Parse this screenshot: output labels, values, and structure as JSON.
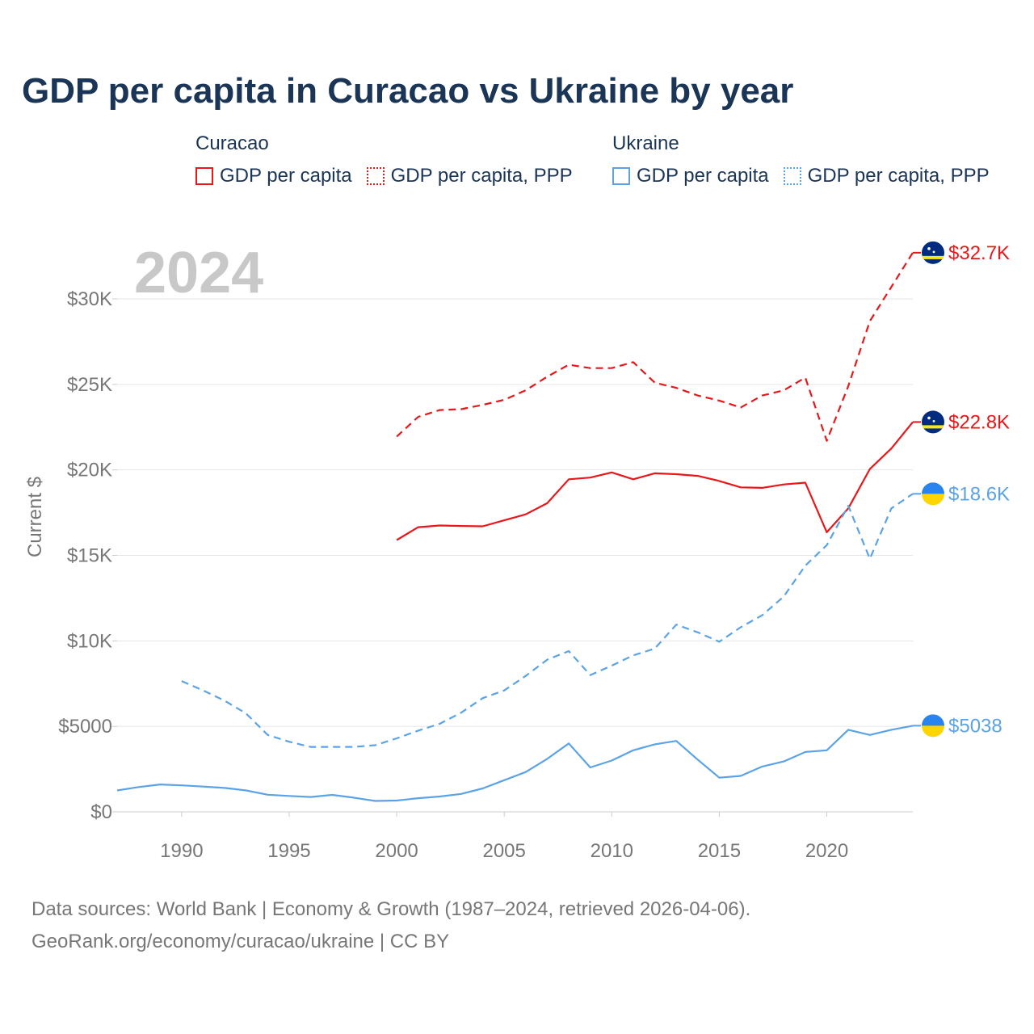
{
  "title": "GDP per capita in Curacao vs Ukraine by year",
  "legend": {
    "curacao": {
      "title": "Curacao",
      "gdp": "GDP per capita",
      "ppp": "GDP per capita, PPP",
      "color": "#e8171a"
    },
    "ukraine": {
      "title": "Ukraine",
      "gdp": "GDP per capita",
      "ppp": "GDP per capita, PPP",
      "color": "#5ba3e6"
    }
  },
  "year_watermark": "2024",
  "source_line1": "Data sources: World Bank | Economy & Growth (1987–2024, retrieved 2026-04-06).",
  "source_line2": "GeoRank.org/economy/curacao/ukraine | CC BY",
  "chart_data": {
    "type": "line",
    "title": "GDP per capita in Curacao vs Ukraine by year",
    "xlabel": "",
    "ylabel": "Current $",
    "xlim": [
      1987,
      2024
    ],
    "ylim": [
      0,
      30000
    ],
    "x_ticks": [
      1990,
      1995,
      2000,
      2005,
      2010,
      2015,
      2020
    ],
    "y_ticks": [
      0,
      5000,
      10000,
      15000,
      20000,
      25000,
      30000
    ],
    "y_tick_labels": [
      "$0",
      "$5000",
      "$10K",
      "$15K",
      "$20K",
      "$25K",
      "$30K"
    ],
    "grid": true,
    "series": [
      {
        "name": "Curacao GDP per capita",
        "country": "curacao",
        "style": "solid",
        "color": "#e8171a",
        "end_label": "$22.8K",
        "x": [
          2000,
          2001,
          2002,
          2003,
          2004,
          2005,
          2006,
          2007,
          2008,
          2009,
          2010,
          2011,
          2012,
          2013,
          2014,
          2015,
          2016,
          2017,
          2018,
          2019,
          2020,
          2021,
          2022,
          2023,
          2024
        ],
        "values": [
          15900,
          16650,
          16750,
          16720,
          16700,
          17050,
          17400,
          18050,
          19450,
          19550,
          19850,
          19450,
          19800,
          19750,
          19650,
          19350,
          18980,
          18950,
          19150,
          19250,
          16350,
          17750,
          20050,
          21250,
          22800
        ]
      },
      {
        "name": "Curacao GDP per capita, PPP",
        "country": "curacao",
        "style": "dashed",
        "color": "#e8171a",
        "end_label": "$32.7K",
        "x": [
          2000,
          2001,
          2002,
          2003,
          2004,
          2005,
          2006,
          2007,
          2008,
          2009,
          2010,
          2011,
          2012,
          2013,
          2014,
          2015,
          2016,
          2017,
          2018,
          2019,
          2020,
          2021,
          2022,
          2023,
          2024
        ],
        "values": [
          21950,
          23100,
          23500,
          23550,
          23800,
          24100,
          24650,
          25450,
          26150,
          25950,
          25950,
          26300,
          25100,
          24800,
          24350,
          24050,
          23650,
          24350,
          24650,
          25400,
          21700,
          24900,
          28700,
          30700,
          32700
        ]
      },
      {
        "name": "Ukraine GDP per capita",
        "country": "ukraine",
        "style": "solid",
        "color": "#5ba3e6",
        "end_label": "$5038",
        "x": [
          1987,
          1988,
          1989,
          1990,
          1991,
          1992,
          1993,
          1994,
          1995,
          1996,
          1997,
          1998,
          1999,
          2000,
          2001,
          2002,
          2003,
          2004,
          2005,
          2006,
          2007,
          2008,
          2009,
          2010,
          2011,
          2012,
          2013,
          2014,
          2015,
          2016,
          2017,
          2018,
          2019,
          2020,
          2021,
          2022,
          2023,
          2024
        ],
        "values": [
          1250,
          1450,
          1600,
          1550,
          1480,
          1400,
          1250,
          1000,
          930,
          870,
          990,
          830,
          640,
          660,
          800,
          900,
          1050,
          1370,
          1850,
          2330,
          3100,
          4000,
          2600,
          3000,
          3600,
          3950,
          4150,
          3050,
          2000,
          2100,
          2650,
          2950,
          3500,
          3600,
          4800,
          4500,
          4800,
          5038
        ]
      },
      {
        "name": "Ukraine GDP per capita, PPP",
        "country": "ukraine",
        "style": "dashed",
        "color": "#5ba3e6",
        "end_label": "$18.6K",
        "x": [
          1990,
          1991,
          1992,
          1993,
          1994,
          1995,
          1996,
          1997,
          1998,
          1999,
          2000,
          2001,
          2002,
          2003,
          2004,
          2005,
          2006,
          2007,
          2008,
          2009,
          2010,
          2011,
          2012,
          2013,
          2014,
          2015,
          2016,
          2017,
          2018,
          2019,
          2020,
          2021,
          2022,
          2023,
          2024
        ],
        "values": [
          7650,
          7100,
          6500,
          5750,
          4500,
          4100,
          3800,
          3800,
          3800,
          3900,
          4300,
          4750,
          5150,
          5800,
          6650,
          7100,
          7950,
          8900,
          9400,
          8000,
          8550,
          9150,
          9550,
          10950,
          10500,
          9950,
          10800,
          11500,
          12600,
          14400,
          15600,
          17900,
          14800,
          17750,
          18600
        ]
      }
    ]
  }
}
